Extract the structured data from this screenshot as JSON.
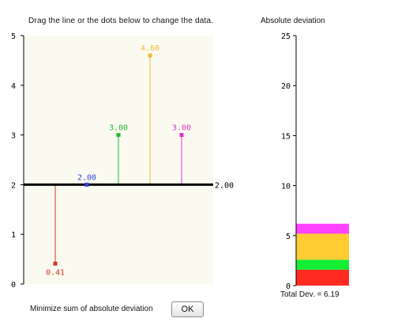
{
  "instruction": "Drag the line or the dots below to change the data.",
  "right_title": "Absolute deviation",
  "total_label": "Total Dev. = 6.19",
  "minimize_label": "Minimize sum of absolute deviation",
  "ok_label": "OK",
  "chart_data": [
    {
      "type": "scatter",
      "title": "",
      "ylim": [
        0,
        5
      ],
      "yticks": [
        "0",
        "1",
        "2",
        "3",
        "4",
        "5"
      ],
      "line_value": 2.0,
      "line_label": "2.00",
      "background": "#fafaf0",
      "points": [
        {
          "value": 0.41,
          "label": "0.41",
          "color": "#dd3322"
        },
        {
          "value": 2.0,
          "label": "2.00",
          "color": "#3344dd"
        },
        {
          "value": 3.0,
          "label": "3.00",
          "color": "#22bb33"
        },
        {
          "value": 4.6,
          "label": "4.60",
          "color": "#eebb33"
        },
        {
          "value": 3.0,
          "label": "3.00",
          "color": "#dd33cc"
        }
      ]
    },
    {
      "type": "bar",
      "title": "Absolute deviation",
      "ylim": [
        0,
        25
      ],
      "yticks": [
        "0",
        "5",
        "10",
        "15",
        "20",
        "25"
      ],
      "stacked": true,
      "segments": [
        {
          "value": 1.59,
          "color": "#ff2a22"
        },
        {
          "value": 0.0,
          "color": "#2244ff"
        },
        {
          "value": 1.0,
          "color": "#11ee33"
        },
        {
          "value": 2.6,
          "color": "#ffcc33"
        },
        {
          "value": 1.0,
          "color": "#ff44ff"
        }
      ],
      "total": 6.19
    }
  ]
}
